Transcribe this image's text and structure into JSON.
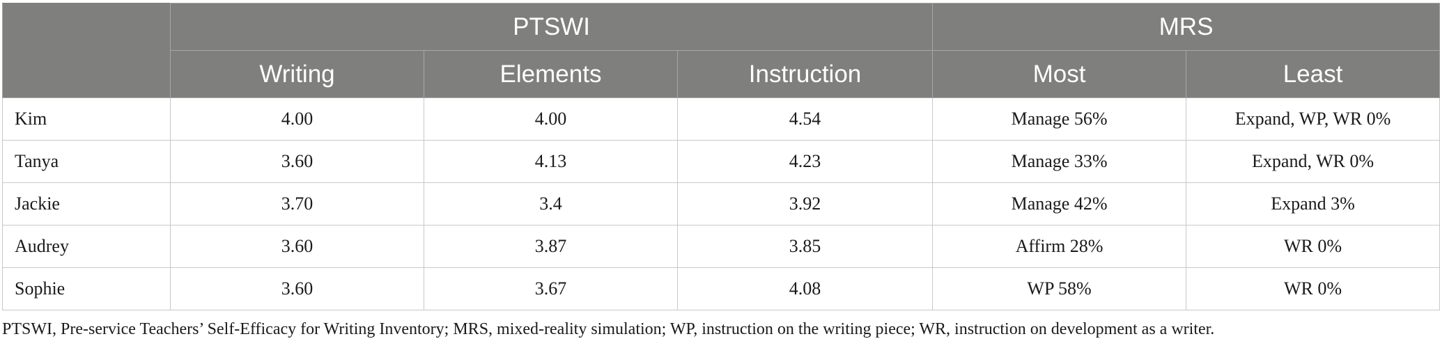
{
  "table": {
    "group_headers": [
      "PTSWI",
      "MRS"
    ],
    "sub_headers": [
      "Writing",
      "Elements",
      "Instruction",
      "Most",
      "Least"
    ],
    "rows": [
      {
        "name": "Kim",
        "cells": [
          "4.00",
          "4.00",
          "4.54",
          "Manage 56%",
          "Expand, WP, WR 0%"
        ]
      },
      {
        "name": "Tanya",
        "cells": [
          "3.60",
          "4.13",
          "4.23",
          "Manage 33%",
          "Expand, WR 0%"
        ]
      },
      {
        "name": "Jackie",
        "cells": [
          "3.70",
          "3.4",
          "3.92",
          "Manage 42%",
          "Expand 3%"
        ]
      },
      {
        "name": "Audrey",
        "cells": [
          "3.60",
          "3.87",
          "3.85",
          "Affirm 28%",
          "WR 0%"
        ]
      },
      {
        "name": "Sophie",
        "cells": [
          "3.60",
          "3.67",
          "4.08",
          "WP 58%",
          "WR 0%"
        ]
      }
    ]
  },
  "footnote": "PTSWI, Pre-service Teachers’ Self-Efficacy for Writing Inventory; MRS, mixed-reality simulation; WP, instruction on the writing piece; WR, instruction on development as a writer."
}
